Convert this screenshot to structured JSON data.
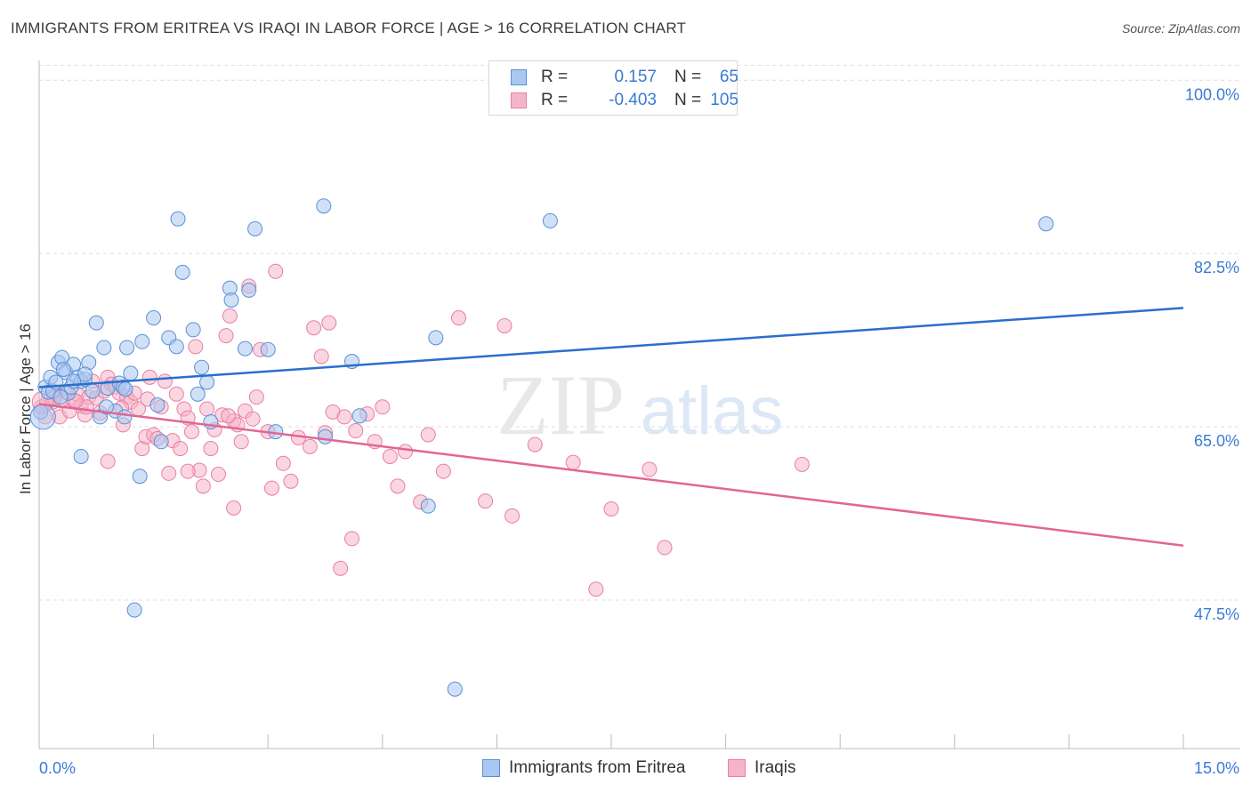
{
  "header": {
    "title": "IMMIGRANTS FROM ERITREA VS IRAQI IN LABOR FORCE | AGE > 16 CORRELATION CHART",
    "source": "Source: ZipAtlas.com"
  },
  "legend": {
    "rows": [
      {
        "r_label": "R =",
        "r_value": "0.157",
        "n_label": "N =",
        "n_value": "65"
      },
      {
        "r_label": "R =",
        "r_value": "-0.403",
        "n_label": "N =",
        "n_value": "105"
      }
    ]
  },
  "bottom_legend": [
    "Immigrants from Eritrea",
    "Iraqis"
  ],
  "watermark": {
    "zip": "ZIP",
    "atlas": "atlas"
  },
  "colors": {
    "blue_fill": "#a9c8f0",
    "blue_stroke": "#5b8fd6",
    "blue_line": "#2a6fcc",
    "pink_fill": "#f5b5c9",
    "pink_stroke": "#e87fa3",
    "pink_line": "#e36594",
    "tick_text": "#3a7ad5",
    "grid": "#dddddd"
  },
  "chart_data": {
    "type": "scatter",
    "title": "IMMIGRANTS FROM ERITREA VS IRAQI IN LABOR FORCE | AGE > 16 CORRELATION CHART",
    "xlabel": "",
    "ylabel": "In Labor Force | Age > 16",
    "xlim": [
      0,
      15
    ],
    "ylim": [
      32.5,
      102
    ],
    "x_tick_labels": [
      "0.0%",
      "15.0%"
    ],
    "y_ticks": [
      47.5,
      65.0,
      82.5,
      100.0
    ],
    "y_tick_labels": [
      "47.5%",
      "65.0%",
      "82.5%",
      "100.0%"
    ],
    "grid": true,
    "legend_position": "top-center",
    "series": [
      {
        "name": "Immigrants from Eritrea",
        "color": "blue",
        "trend": [
          [
            0,
            69.0
          ],
          [
            15,
            77.0
          ]
        ],
        "points": [
          [
            0.02,
            66.5
          ],
          [
            0.08,
            69.0
          ],
          [
            0.12,
            68.5
          ],
          [
            0.15,
            70.0
          ],
          [
            0.18,
            68.6
          ],
          [
            0.22,
            69.5
          ],
          [
            0.25,
            71.5
          ],
          [
            0.3,
            72.0
          ],
          [
            0.35,
            70.5
          ],
          [
            0.38,
            68.4
          ],
          [
            0.42,
            69.0
          ],
          [
            0.45,
            71.3
          ],
          [
            0.5,
            70.0
          ],
          [
            0.55,
            69.6
          ],
          [
            0.6,
            69.8
          ],
          [
            0.65,
            71.5
          ],
          [
            0.7,
            68.6
          ],
          [
            0.75,
            75.5
          ],
          [
            0.8,
            66.0
          ],
          [
            0.85,
            73.0
          ],
          [
            0.9,
            68.9
          ],
          [
            1.0,
            66.6
          ],
          [
            1.05,
            69.4
          ],
          [
            1.1,
            69.0
          ],
          [
            1.15,
            73.0
          ],
          [
            1.2,
            70.4
          ],
          [
            1.35,
            73.6
          ],
          [
            1.5,
            76.0
          ],
          [
            1.55,
            67.2
          ],
          [
            1.6,
            63.5
          ],
          [
            1.7,
            74.0
          ],
          [
            1.8,
            73.1
          ],
          [
            1.82,
            86.0
          ],
          [
            1.88,
            80.6
          ],
          [
            2.02,
            74.8
          ],
          [
            2.08,
            68.3
          ],
          [
            2.13,
            71.0
          ],
          [
            2.2,
            69.5
          ],
          [
            2.25,
            65.5
          ],
          [
            2.5,
            79.0
          ],
          [
            2.52,
            77.8
          ],
          [
            2.7,
            72.9
          ],
          [
            2.83,
            85.0
          ],
          [
            3.0,
            72.8
          ],
          [
            3.1,
            64.5
          ],
          [
            3.75,
            64.0
          ],
          [
            3.73,
            87.3
          ],
          [
            4.2,
            66.1
          ],
          [
            5.1,
            57.0
          ],
          [
            5.2,
            74.0
          ],
          [
            5.45,
            38.5
          ],
          [
            0.55,
            62.0
          ],
          [
            0.88,
            67.0
          ],
          [
            1.13,
            68.8
          ],
          [
            1.32,
            60.0
          ],
          [
            1.25,
            46.5
          ],
          [
            4.1,
            71.6
          ],
          [
            6.7,
            85.8
          ],
          [
            13.2,
            85.5
          ],
          [
            0.28,
            68.0
          ],
          [
            0.6,
            70.3
          ],
          [
            0.45,
            69.6
          ],
          [
            0.32,
            70.8
          ],
          [
            1.12,
            66.0
          ],
          [
            2.75,
            78.8
          ]
        ]
      },
      {
        "name": "Iraqis",
        "color": "pink",
        "trend": [
          [
            0,
            67.3
          ],
          [
            15,
            53.0
          ]
        ],
        "points": [
          [
            0.03,
            67.0
          ],
          [
            0.08,
            66.0
          ],
          [
            0.1,
            67.4
          ],
          [
            0.15,
            68.0
          ],
          [
            0.18,
            67.5
          ],
          [
            0.22,
            68.4
          ],
          [
            0.27,
            66.0
          ],
          [
            0.3,
            67.6
          ],
          [
            0.36,
            68.5
          ],
          [
            0.4,
            66.6
          ],
          [
            0.45,
            67.7
          ],
          [
            0.5,
            68.3
          ],
          [
            0.55,
            67.1
          ],
          [
            0.6,
            66.2
          ],
          [
            0.65,
            68.0
          ],
          [
            0.7,
            69.6
          ],
          [
            0.75,
            67.9
          ],
          [
            0.8,
            66.4
          ],
          [
            0.85,
            68.6
          ],
          [
            0.9,
            70.0
          ],
          [
            0.95,
            69.3
          ],
          [
            1.0,
            69.0
          ],
          [
            1.05,
            68.4
          ],
          [
            1.1,
            65.2
          ],
          [
            1.15,
            68.0
          ],
          [
            1.2,
            67.5
          ],
          [
            1.25,
            68.4
          ],
          [
            1.3,
            66.8
          ],
          [
            1.35,
            62.8
          ],
          [
            1.4,
            64.0
          ],
          [
            1.45,
            70.0
          ],
          [
            1.5,
            64.2
          ],
          [
            1.55,
            63.8
          ],
          [
            1.6,
            67.0
          ],
          [
            1.65,
            69.6
          ],
          [
            1.7,
            60.3
          ],
          [
            1.75,
            63.6
          ],
          [
            1.8,
            68.3
          ],
          [
            1.85,
            62.8
          ],
          [
            1.9,
            66.8
          ],
          [
            1.95,
            65.9
          ],
          [
            2.0,
            64.5
          ],
          [
            2.05,
            73.1
          ],
          [
            2.1,
            60.6
          ],
          [
            2.15,
            59.0
          ],
          [
            2.2,
            66.8
          ],
          [
            2.25,
            62.8
          ],
          [
            2.3,
            64.7
          ],
          [
            2.35,
            60.2
          ],
          [
            2.4,
            66.2
          ],
          [
            2.45,
            74.2
          ],
          [
            2.5,
            76.2
          ],
          [
            2.55,
            65.6
          ],
          [
            2.6,
            65.2
          ],
          [
            2.65,
            63.5
          ],
          [
            2.7,
            66.6
          ],
          [
            2.75,
            79.2
          ],
          [
            2.8,
            65.8
          ],
          [
            2.85,
            68.0
          ],
          [
            2.9,
            72.8
          ],
          [
            3.0,
            64.5
          ],
          [
            3.05,
            58.8
          ],
          [
            3.1,
            80.7
          ],
          [
            3.2,
            61.3
          ],
          [
            3.3,
            59.5
          ],
          [
            3.4,
            63.9
          ],
          [
            3.55,
            63.0
          ],
          [
            3.6,
            75.0
          ],
          [
            3.7,
            72.1
          ],
          [
            3.75,
            64.4
          ],
          [
            3.8,
            75.5
          ],
          [
            3.85,
            66.5
          ],
          [
            4.0,
            66.0
          ],
          [
            4.1,
            53.7
          ],
          [
            4.15,
            64.6
          ],
          [
            4.3,
            66.3
          ],
          [
            4.4,
            63.5
          ],
          [
            4.5,
            67.0
          ],
          [
            4.6,
            62.0
          ],
          [
            4.7,
            59.0
          ],
          [
            4.8,
            62.5
          ],
          [
            5.0,
            57.4
          ],
          [
            5.1,
            64.2
          ],
          [
            5.3,
            60.5
          ],
          [
            5.5,
            76.0
          ],
          [
            5.85,
            57.5
          ],
          [
            6.1,
            75.2
          ],
          [
            6.2,
            56.0
          ],
          [
            6.5,
            63.2
          ],
          [
            7.0,
            61.4
          ],
          [
            7.3,
            48.6
          ],
          [
            7.5,
            56.7
          ],
          [
            8.0,
            60.7
          ],
          [
            8.2,
            52.8
          ],
          [
            10.0,
            61.2
          ],
          [
            3.95,
            50.7
          ],
          [
            2.55,
            56.8
          ],
          [
            1.95,
            60.5
          ],
          [
            0.9,
            61.5
          ],
          [
            0.62,
            67.0
          ],
          [
            0.2,
            67.9
          ],
          [
            1.42,
            67.8
          ],
          [
            0.48,
            67.6
          ],
          [
            1.08,
            66.9
          ],
          [
            2.48,
            66.1
          ]
        ]
      }
    ]
  }
}
